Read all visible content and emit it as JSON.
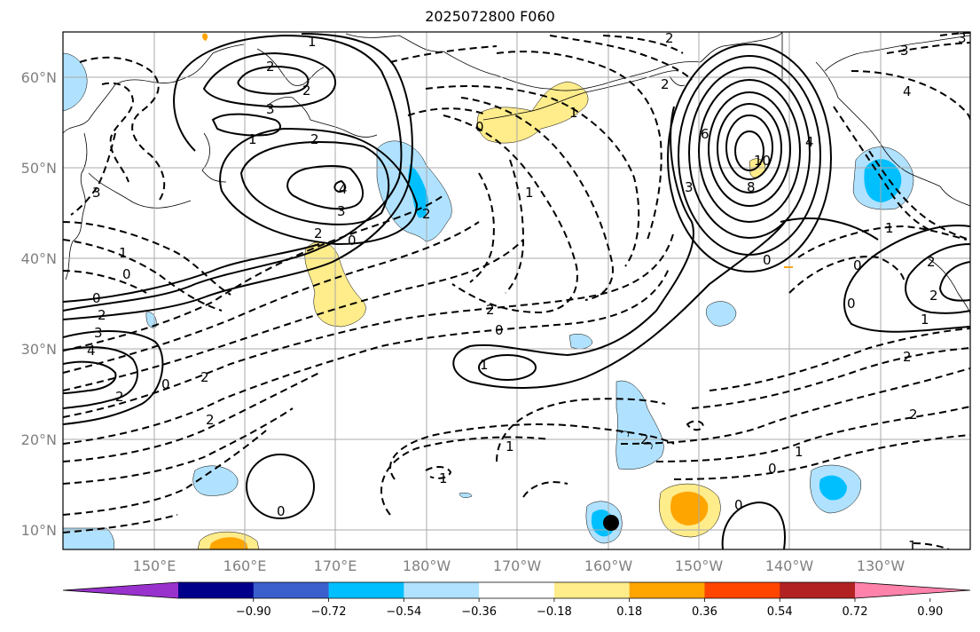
{
  "title": "2025072800 F060",
  "lat_labels": [
    "60°N",
    "50°N",
    "40°N",
    "30°N",
    "20°N",
    "10°N"
  ],
  "lon_labels": [
    "150°E",
    "160°E",
    "170°E",
    "180°W",
    "170°W",
    "160°W",
    "150°W",
    "140°W",
    "130°W"
  ],
  "colorbar": {
    "ticks": [
      "−0.90",
      "−0.72",
      "−0.54",
      "−0.36",
      "−0.18",
      "0.18",
      "0.36",
      "0.54",
      "0.72",
      "0.90"
    ],
    "colors": [
      "#9932cc",
      "#00008b",
      "#3a5fcd",
      "#00bfff",
      "#b0e2ff",
      "#ffffff",
      "#ffec8b",
      "#ffa500",
      "#ff4500",
      "#b22222",
      "#ff82ab"
    ]
  },
  "contour_labels": [
    {
      "text": "1"
    },
    {
      "text": "2"
    },
    {
      "text": "3"
    },
    {
      "text": "2"
    },
    {
      "text": "1"
    },
    {
      "text": "2"
    },
    {
      "text": "4"
    },
    {
      "text": "3"
    },
    {
      "text": "2"
    },
    {
      "text": "0"
    },
    {
      "text": "2"
    },
    {
      "text": "0"
    },
    {
      "text": "0"
    },
    {
      "text": "2"
    },
    {
      "text": "3"
    },
    {
      "text": "4"
    },
    {
      "text": "0"
    },
    {
      "text": "2"
    },
    {
      "text": "2"
    },
    {
      "text": "2"
    },
    {
      "text": "2"
    },
    {
      "text": "0"
    },
    {
      "text": "1"
    },
    {
      "text": "6"
    },
    {
      "text": "4"
    },
    {
      "text": "8"
    },
    {
      "text": "10"
    },
    {
      "text": "3"
    },
    {
      "text": "1"
    },
    {
      "text": "0"
    },
    {
      "text": "2"
    },
    {
      "text": "0"
    },
    {
      "text": "1"
    },
    {
      "text": "0"
    },
    {
      "text": "1"
    },
    {
      "text": "2"
    },
    {
      "text": "3"
    },
    {
      "text": "4"
    },
    {
      "text": "2"
    },
    {
      "text": "3"
    },
    {
      "text": "0"
    },
    {
      "text": "1"
    },
    {
      "text": "2"
    },
    {
      "text": "2"
    },
    {
      "text": "1"
    },
    {
      "text": "0"
    },
    {
      "text": "1"
    },
    {
      "text": "2"
    },
    {
      "text": "0"
    },
    {
      "text": "0"
    },
    {
      "text": "1"
    },
    {
      "text": "1"
    },
    {
      "text": "2"
    },
    {
      "text": "3"
    },
    {
      "text": "1"
    }
  ]
}
